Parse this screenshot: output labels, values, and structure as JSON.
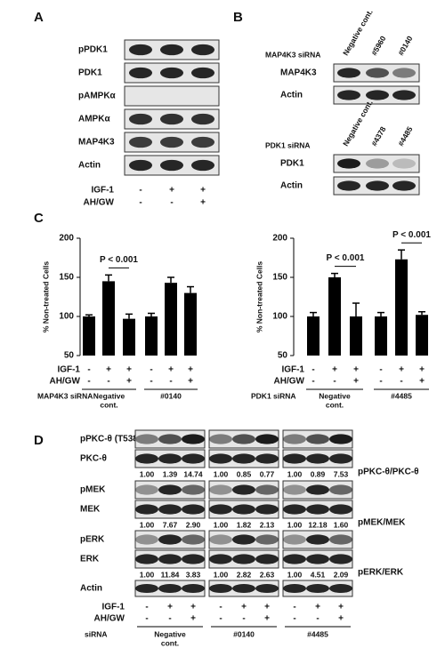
{
  "panel_a": {
    "label": "A",
    "rows": [
      "pPDK1",
      "PDK1",
      "pAMPKα",
      "AMPKα",
      "MAP4K3",
      "Actin"
    ],
    "treatments": [
      {
        "name": "IGF-1",
        "signs": [
          "-",
          "+",
          "+"
        ]
      },
      {
        "name": "AH/GW",
        "signs": [
          "-",
          "-",
          "+"
        ]
      }
    ]
  },
  "panel_b": {
    "label": "B",
    "blots": [
      {
        "sirna": "MAP4K3 siRNA",
        "lanes": [
          "Negative cont.",
          "#5960",
          "#0140"
        ],
        "rows": [
          "MAP4K3",
          "Actin"
        ]
      },
      {
        "sirna": "PDK1 siRNA",
        "lanes": [
          "Negative cont.",
          "#4378",
          "#4485"
        ],
        "rows": [
          "PDK1",
          "Actin"
        ]
      }
    ]
  },
  "panel_c": {
    "label": "C"
  },
  "chart_data": [
    {
      "type": "bar",
      "y_label": "% Non-treated Cells",
      "values": [
        100,
        145,
        97,
        100,
        143,
        130
      ],
      "errors": [
        2,
        8,
        6,
        4,
        7,
        8
      ],
      "color": "#000000",
      "ylim": [
        50,
        200
      ],
      "yticks": [
        50,
        100,
        150,
        200
      ],
      "annotations": [
        "P < 0.001"
      ],
      "treatments": [
        {
          "name": "IGF-1",
          "signs": [
            "-",
            "+",
            "+",
            "-",
            "+",
            "+"
          ]
        },
        {
          "name": "AH/GW",
          "signs": [
            "-",
            "-",
            "+",
            "-",
            "-",
            "+"
          ]
        }
      ],
      "sirna": "MAP4K3 siRNA",
      "groups": [
        [
          "Negative",
          "cont."
        ],
        [
          "#0140"
        ]
      ]
    },
    {
      "type": "bar",
      "y_label": "% Non-treated Cells",
      "values": [
        100,
        150,
        100,
        100,
        173,
        102
      ],
      "errors": [
        5,
        5,
        17,
        5,
        12,
        4
      ],
      "color": "#000000",
      "ylim": [
        50,
        200
      ],
      "yticks": [
        50,
        100,
        150,
        200
      ],
      "annotations": [
        "P < 0.001",
        "P < 0.001"
      ],
      "treatments": [
        {
          "name": "IGF-1",
          "signs": [
            "-",
            "+",
            "+",
            "-",
            "+",
            "+"
          ]
        },
        {
          "name": "AH/GW",
          "signs": [
            "-",
            "-",
            "+",
            "-",
            "-",
            "+"
          ]
        }
      ],
      "sirna": "PDK1 siRNA",
      "groups": [
        [
          "Negative",
          "cont."
        ],
        [
          "#4485"
        ]
      ]
    }
  ],
  "panel_d": {
    "label": "D",
    "blocks": [
      {
        "rows": [
          "pPKC-θ (T538)",
          "PKC-θ"
        ],
        "ratio_label": "pPKC-θ/PKC-θ",
        "ratios": [
          [
            "1.00",
            "1.39",
            "14.74"
          ],
          [
            "1.00",
            "0.85",
            "0.77"
          ],
          [
            "1.00",
            "0.89",
            "7.53"
          ]
        ]
      },
      {
        "rows": [
          "pMEK",
          "MEK"
        ],
        "ratio_label": "pMEK/MEK",
        "ratios": [
          [
            "1.00",
            "7.67",
            "2.90"
          ],
          [
            "1.00",
            "1.82",
            "2.13"
          ],
          [
            "1.00",
            "12.18",
            "1.60"
          ]
        ]
      },
      {
        "rows": [
          "pERK",
          "ERK"
        ],
        "ratio_label": "pERK/ERK",
        "ratios": [
          [
            "1.00",
            "11.84",
            "3.83"
          ],
          [
            "1.00",
            "2.82",
            "2.63"
          ],
          [
            "1.00",
            "4.51",
            "2.09"
          ]
        ]
      }
    ],
    "actin": "Actin",
    "treatments": [
      {
        "name": "IGF-1",
        "signs": [
          "-",
          "+",
          "+"
        ]
      },
      {
        "name": "AH/GW",
        "signs": [
          "-",
          "-",
          "+"
        ]
      }
    ],
    "sirna": "siRNA",
    "groups": [
      [
        "Negative",
        "cont."
      ],
      [
        "#0140"
      ],
      [
        "#4485"
      ]
    ]
  }
}
